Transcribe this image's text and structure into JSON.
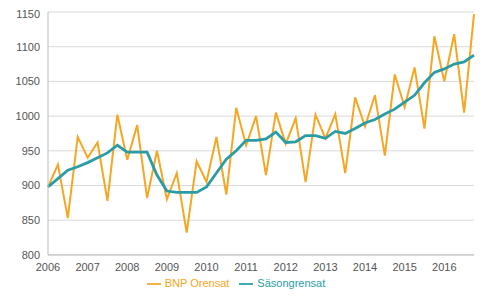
{
  "chart_data": {
    "type": "line",
    "categories": [
      "2006",
      null,
      null,
      null,
      "2007",
      null,
      null,
      null,
      "2008",
      null,
      null,
      null,
      "2009",
      null,
      null,
      null,
      "2010",
      null,
      null,
      null,
      "2011",
      null,
      null,
      null,
      "2012",
      null,
      null,
      null,
      "2013",
      null,
      null,
      null,
      "2014",
      null,
      null,
      null,
      "2015",
      null,
      null,
      null,
      "2016",
      null,
      null,
      null
    ],
    "series": [
      {
        "name": "BNP Orensat",
        "color": "#f5a623",
        "values": [
          898,
          930,
          853,
          970,
          940,
          962,
          878,
          1002,
          937,
          987,
          882,
          950,
          880,
          918,
          832,
          935,
          905,
          970,
          887,
          1012,
          958,
          1000,
          915,
          1005,
          960,
          997,
          905,
          1002,
          968,
          1003,
          918,
          1027,
          985,
          1030,
          943,
          1060,
          1013,
          1070,
          982,
          1115,
          1050,
          1118,
          1005,
          1147
        ]
      },
      {
        "name": "Säsongrensat",
        "color": "#2a9ca6",
        "values": [
          898,
          910,
          922,
          927,
          933,
          940,
          947,
          958,
          948,
          948,
          948,
          915,
          892,
          890,
          890,
          890,
          898,
          918,
          938,
          950,
          965,
          965,
          967,
          977,
          962,
          963,
          972,
          972,
          968,
          978,
          975,
          982,
          990,
          995,
          1003,
          1010,
          1020,
          1030,
          1048,
          1063,
          1068,
          1075,
          1078,
          1088
        ]
      }
    ],
    "ylim": [
      800,
      1150
    ],
    "yticks": [
      800,
      850,
      900,
      950,
      1000,
      1050,
      1100,
      1150
    ],
    "grid": true,
    "legend": "bottom"
  }
}
